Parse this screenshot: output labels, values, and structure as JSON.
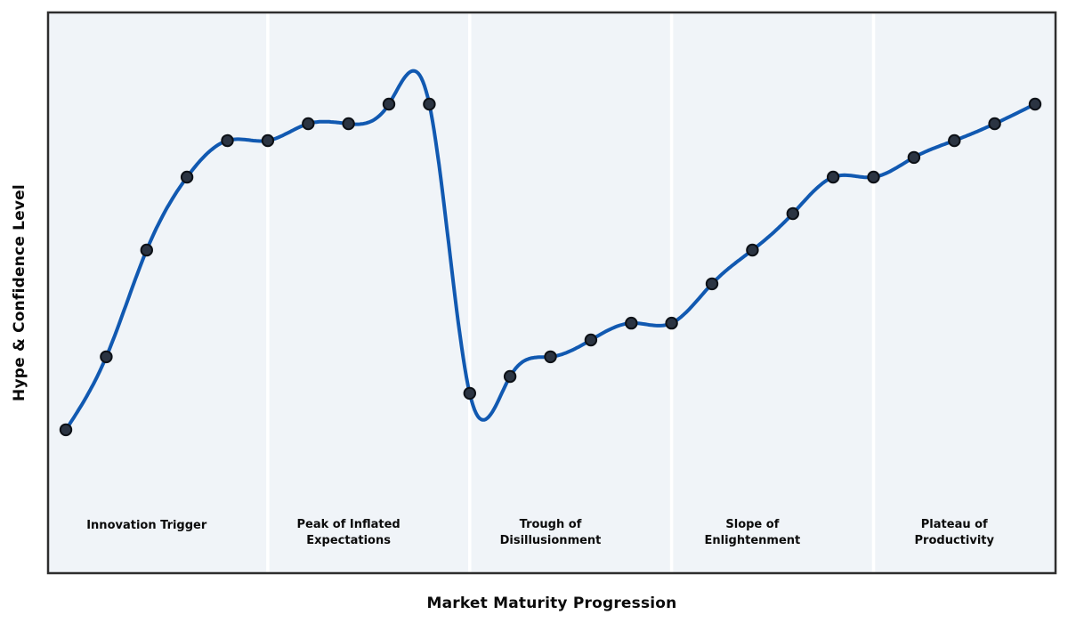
{
  "chart_data": {
    "type": "line",
    "title": "",
    "xlabel": "Market Maturity Progression",
    "ylabel": "Hype & Confidence Level",
    "x": [
      0,
      1,
      2,
      3,
      4,
      5,
      6,
      7,
      8,
      9,
      10,
      11,
      12,
      13,
      14,
      15,
      16,
      17,
      18,
      19,
      20,
      21,
      22,
      23,
      24
    ],
    "values": [
      26,
      39,
      58,
      71,
      77.5,
      77.5,
      80.5,
      80.5,
      84,
      84,
      32.5,
      35.5,
      39,
      42,
      45,
      45,
      52,
      58,
      64.5,
      71,
      71,
      74.5,
      77.5,
      80.5,
      84
    ],
    "smoothing": "natural-cubic-spline",
    "markers": true,
    "grid": false,
    "legend": "none",
    "xlim": [
      -0.5,
      24.5
    ],
    "ylim": [
      0,
      100
    ],
    "ticks": "none",
    "phase_boundaries": [
      5,
      10,
      15,
      20
    ],
    "phases": [
      {
        "name": "Innovation Trigger",
        "lines": [
          "Innovation Trigger"
        ],
        "x_center": 2
      },
      {
        "name": "Peak of Inflated Expectations",
        "lines": [
          "Peak of Inflated",
          "Expectations"
        ],
        "x_center": 7
      },
      {
        "name": "Trough of Disillusionment",
        "lines": [
          "Trough of",
          "Disillusionment"
        ],
        "x_center": 12
      },
      {
        "name": "Slope of Enlightenment",
        "lines": [
          "Slope of",
          "Enlightenment"
        ],
        "x_center": 17
      },
      {
        "name": "Plateau of Productivity",
        "lines": [
          "Plateau of",
          "Productivity"
        ],
        "x_center": 22
      }
    ],
    "colors": {
      "line": "#1159b1",
      "marker_fill": "#2b3442",
      "marker_edge": "#0d1117",
      "plot_background": "#f0f4f8",
      "divider": "#ffffff",
      "border": "#2e2e2e",
      "label_text": "#0b0b0b",
      "page_background": "#ffffff"
    }
  }
}
